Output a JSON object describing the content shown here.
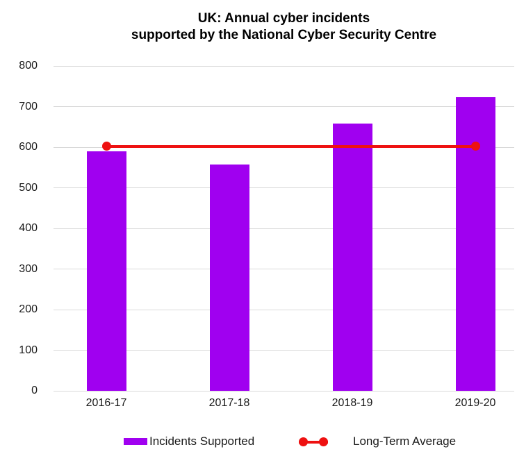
{
  "title": {
    "line1": "UK: Annual cyber incidents",
    "line2": "supported by the National Cyber Security Centre"
  },
  "chart_data": {
    "type": "bar",
    "title": "UK: Annual cyber incidents supported by the National Cyber Security Centre",
    "categories": [
      "2016-17",
      "2017-18",
      "2018-19",
      "2019-20"
    ],
    "series": [
      {
        "name": "Incidents Supported",
        "type": "bar",
        "values": [
          590,
          557,
          658,
          723
        ],
        "color": "#A000F0"
      },
      {
        "name": "Long-Term Average",
        "type": "line",
        "values": [
          602,
          602,
          602,
          602
        ],
        "color": "#EE1111"
      }
    ],
    "xlabel": "",
    "ylabel": "",
    "ylim": [
      0,
      800
    ],
    "yticks": [
      0,
      100,
      200,
      300,
      400,
      500,
      600,
      700,
      800
    ],
    "grid": true,
    "legend_position": "bottom"
  },
  "legend": {
    "items": [
      {
        "label": "Incidents Supported",
        "swatch": "bar",
        "color": "#A000F0"
      },
      {
        "label": "Long-Term Average",
        "swatch": "line-dots",
        "color": "#EE1111"
      }
    ]
  },
  "colors": {
    "bar": "#A000F0",
    "line": "#EE1111",
    "gridline": "#D9D9D9",
    "text": "#1A1A1A",
    "background": "#FFFFFF"
  }
}
